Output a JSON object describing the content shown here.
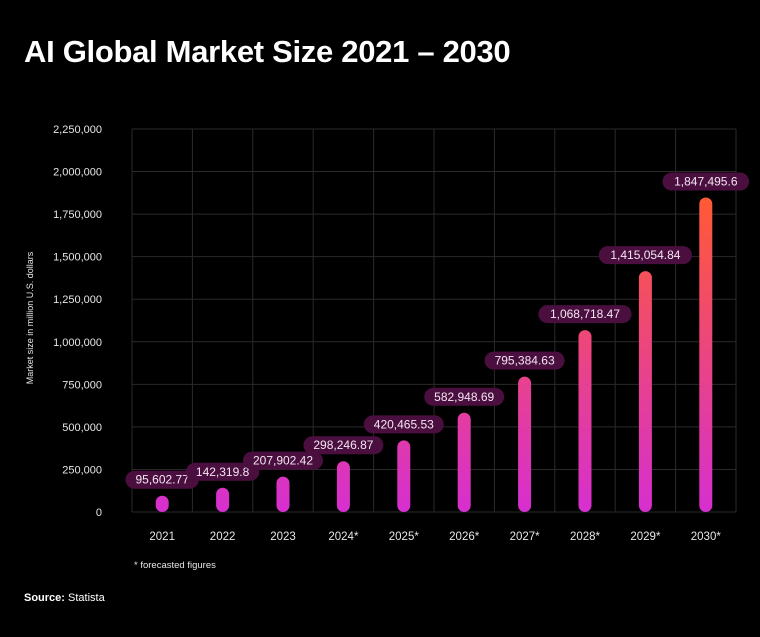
{
  "chart_data": {
    "type": "bar",
    "title": "AI Global Market Size 2021 – 2030",
    "ylabel": "Market size in million U.S. dollars",
    "xlabel": "",
    "categories": [
      "2021",
      "2022",
      "2023",
      "2024*",
      "2025*",
      "2026*",
      "2027*",
      "2028*",
      "2029*",
      "2030*"
    ],
    "values": [
      95602.77,
      142319.8,
      207902.42,
      298246.87,
      420465.53,
      582948.69,
      795384.63,
      1068718.47,
      1415054.84,
      1847495.6
    ],
    "value_labels": [
      "95,602.77",
      "142,319.8",
      "207,902.42",
      "298,246.87",
      "420,465.53",
      "582,948.69",
      "795,384.63",
      "1,068,718.47",
      "1,415,054.84",
      "1,847,495.6"
    ],
    "ylim": [
      0,
      2250000
    ],
    "yticks": [
      0,
      250000,
      500000,
      750000,
      1000000,
      1250000,
      1500000,
      1750000,
      2000000,
      2250000
    ],
    "ytick_labels": [
      "0",
      "250,000",
      "500,000",
      "750,000",
      "1,000,000",
      "1,250,000",
      "1,500,000",
      "1,750,000",
      "2,000,000",
      "2,250,000"
    ],
    "grid": true,
    "colors": {
      "bar_bottom": "#d62fd0",
      "bar_top": "#ff5a36",
      "label_bg": "#4a0f3f",
      "grid": "#2a2a2a"
    }
  },
  "footnote": "* forecasted figures",
  "source": {
    "label": "Source:",
    "value": "Statista"
  }
}
